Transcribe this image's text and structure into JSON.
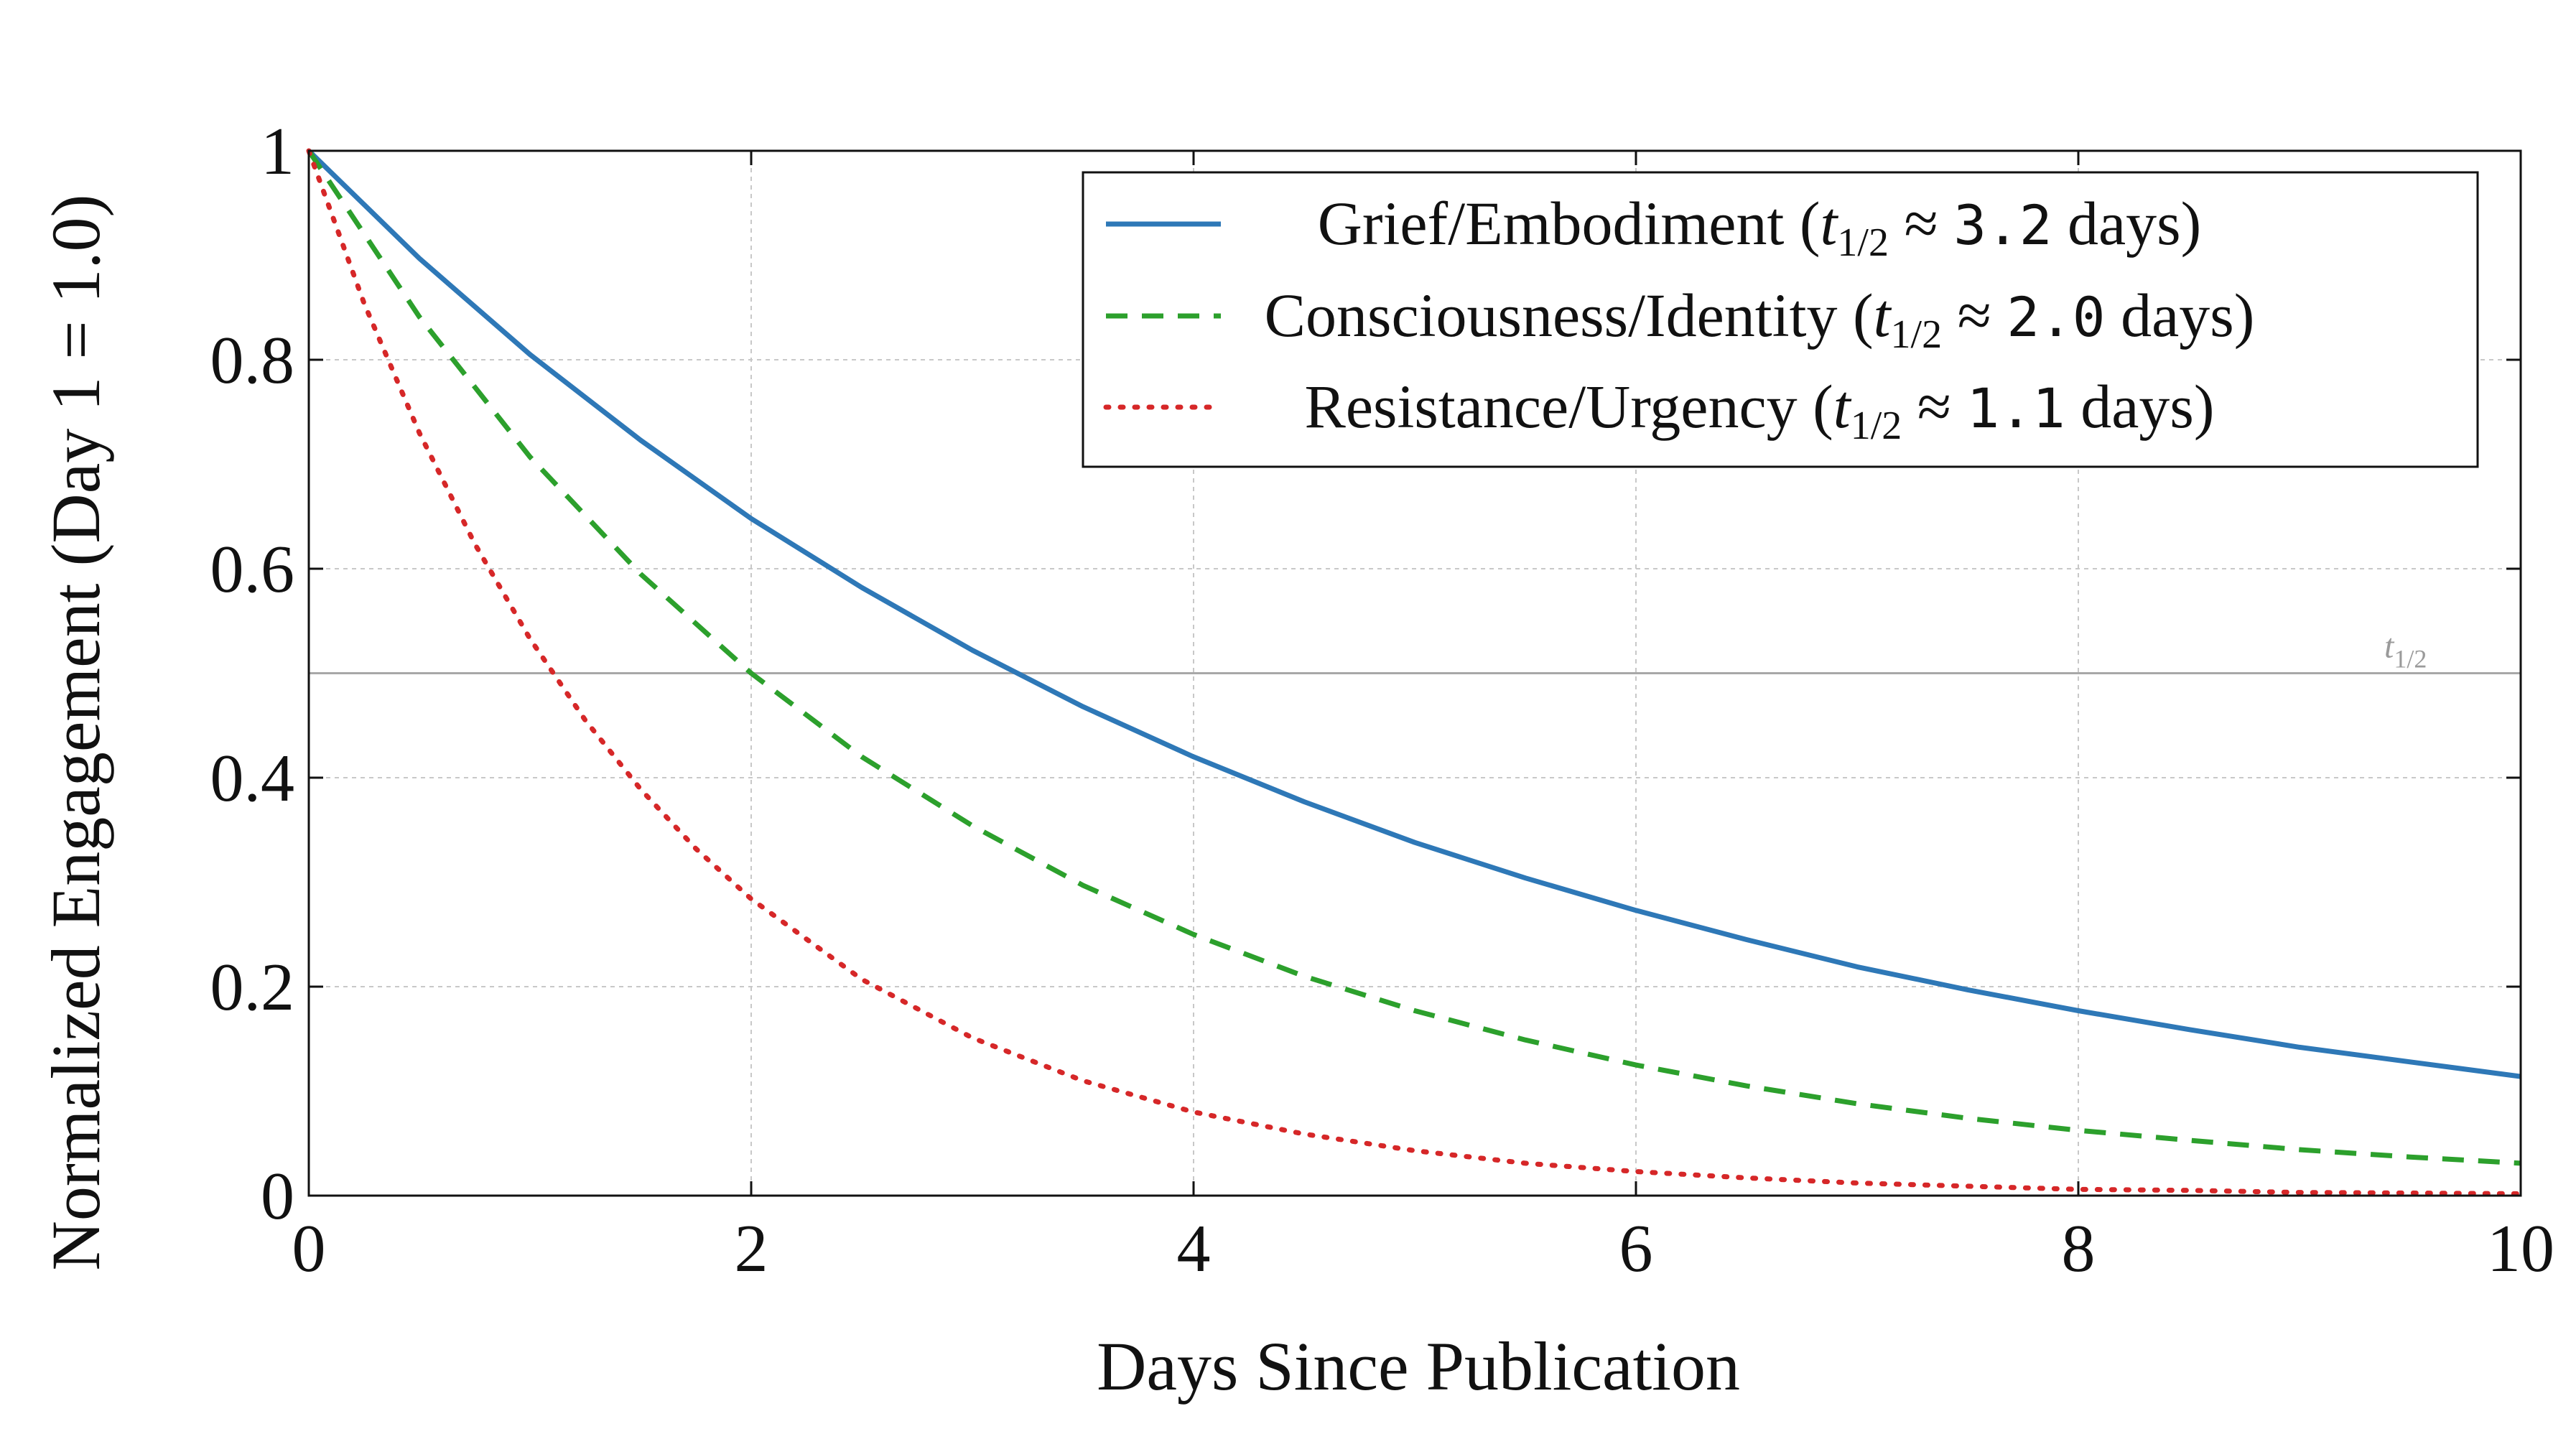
{
  "chart_data": {
    "type": "line",
    "title": "",
    "xlabel": "Days Since Publication",
    "ylabel": "Normalized Engagement (Day 1 = 1.0)",
    "xlim": [
      0,
      10
    ],
    "ylim": [
      0,
      1
    ],
    "xticks": [
      0,
      2,
      4,
      6,
      8,
      10
    ],
    "xtick_labels": [
      "0",
      "2",
      "4",
      "6",
      "8",
      "10"
    ],
    "yticks": [
      0,
      0.2,
      0.4,
      0.6,
      0.8,
      1
    ],
    "ytick_labels": [
      "0",
      "0.2",
      "0.4",
      "0.6",
      "0.8",
      "1"
    ],
    "grid": true,
    "legend_position": "top-right",
    "reference_line": {
      "y": 0.5,
      "label_base": "t",
      "label_sub": "1/2"
    },
    "series": [
      {
        "name": "Grief/Embodiment (t1/2 ≈ 3.2 days)",
        "legend_main": "Grief/Embodiment (",
        "legend_value": "3.2",
        "legend_end": " days)",
        "color": "#2e78b7",
        "style": "solid",
        "x": [
          0,
          0.5,
          1,
          1.5,
          2,
          2.5,
          3,
          3.5,
          4,
          4.5,
          5,
          5.5,
          6,
          6.5,
          7,
          7.5,
          8,
          8.5,
          9,
          9.5,
          10
        ],
        "y": [
          1.0,
          0.897,
          0.805,
          0.723,
          0.648,
          0.582,
          0.522,
          0.468,
          0.42,
          0.377,
          0.338,
          0.304,
          0.273,
          0.245,
          0.219,
          0.197,
          0.177,
          0.159,
          0.142,
          0.128,
          0.114
        ]
      },
      {
        "name": "Consciousness/Identity (t1/2 ≈ 2.0 days)",
        "legend_main": "Consciousness/Identity (",
        "legend_value": "2.0",
        "legend_end": " days)",
        "color": "#2ca02c",
        "style": "dashed",
        "x": [
          0,
          0.5,
          1,
          1.5,
          2,
          2.5,
          3,
          3.5,
          4,
          4.5,
          5,
          5.5,
          6,
          6.5,
          7,
          7.5,
          8,
          8.5,
          9,
          9.5,
          10
        ],
        "y": [
          1.0,
          0.841,
          0.707,
          0.595,
          0.5,
          0.42,
          0.354,
          0.297,
          0.25,
          0.21,
          0.177,
          0.149,
          0.125,
          0.105,
          0.088,
          0.074,
          0.0625,
          0.053,
          0.044,
          0.037,
          0.031
        ]
      },
      {
        "name": "Resistance/Urgency (t1/2 ≈ 1.1 days)",
        "legend_main": "Resistance/Urgency (",
        "legend_value": "1.1",
        "legend_end": " days)",
        "color": "#d62728",
        "style": "dotted",
        "x": [
          0,
          0.25,
          0.5,
          0.75,
          1,
          1.25,
          1.5,
          1.75,
          2,
          2.5,
          3,
          3.5,
          4,
          4.5,
          5,
          5.5,
          6,
          6.5,
          7,
          7.5,
          8,
          8.5,
          9,
          9.5,
          10
        ],
        "y": [
          1.0,
          0.854,
          0.73,
          0.624,
          0.533,
          0.455,
          0.389,
          0.332,
          0.284,
          0.207,
          0.151,
          0.11,
          0.08,
          0.059,
          0.043,
          0.031,
          0.023,
          0.017,
          0.012,
          0.009,
          0.006,
          0.005,
          0.003,
          0.0025,
          0.0018
        ]
      }
    ]
  }
}
